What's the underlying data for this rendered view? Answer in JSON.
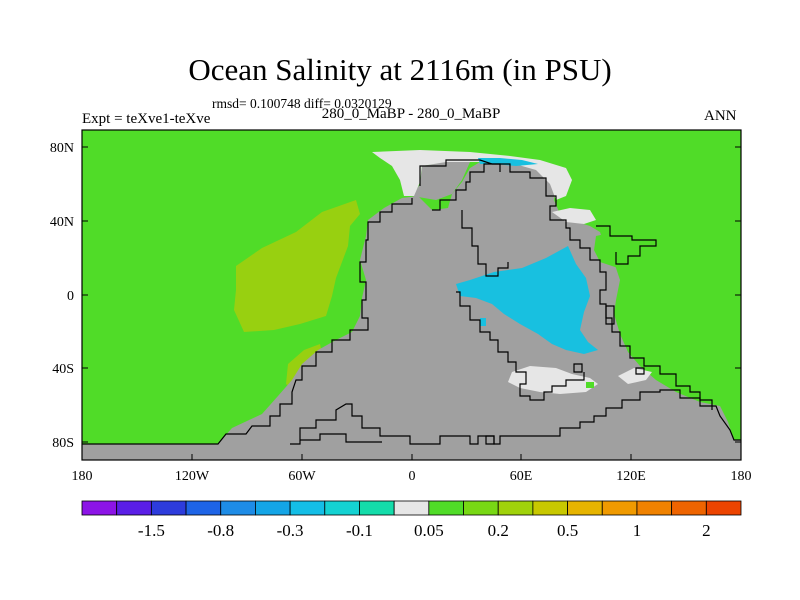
{
  "plot": {
    "title": "Ocean Salinity at 2116m (in PSU)",
    "stats": "rmsd= 0.100748 diff= 0.0320129",
    "expt_label": "Expt = teXve1-teXve",
    "case_label": "280_0_MaBP - 280_0_MaBP",
    "season": "ANN"
  },
  "colors": {
    "background_field": "#50dc28",
    "land": "#a0a0a0",
    "near_zero": "#e6e6e6",
    "positive_light": "#98d010",
    "negative_cyan": "#18c0e0",
    "coast": "#000000"
  },
  "chart_data": {
    "type": "heatmap",
    "map_type": "map (cylindrical equidistant)",
    "x_ticks": [
      "180",
      "120W",
      "60W",
      "0",
      "60E",
      "120E",
      "180"
    ],
    "y_ticks": [
      "80N",
      "40N",
      "0",
      "40S",
      "80S"
    ],
    "lon_range": [
      -180,
      180
    ],
    "lat_range": [
      -90,
      90
    ],
    "colorbar": {
      "colors": [
        "#8c14e6",
        "#5a1ee6",
        "#2d3cdc",
        "#1e64e6",
        "#1e8ce6",
        "#14a5e6",
        "#14bee6",
        "#14d2d2",
        "#14dcaa",
        "#e6e6e6",
        "#50dc28",
        "#78d814",
        "#a0d20a",
        "#c8c800",
        "#e6b400",
        "#f09a00",
        "#f08200",
        "#ee6400",
        "#ec4400"
      ],
      "labels": [
        "-1.5",
        "-0.8",
        "-0.3",
        "-0.1",
        "0.05",
        "0.2",
        "0.5",
        "1",
        "2"
      ]
    }
  }
}
